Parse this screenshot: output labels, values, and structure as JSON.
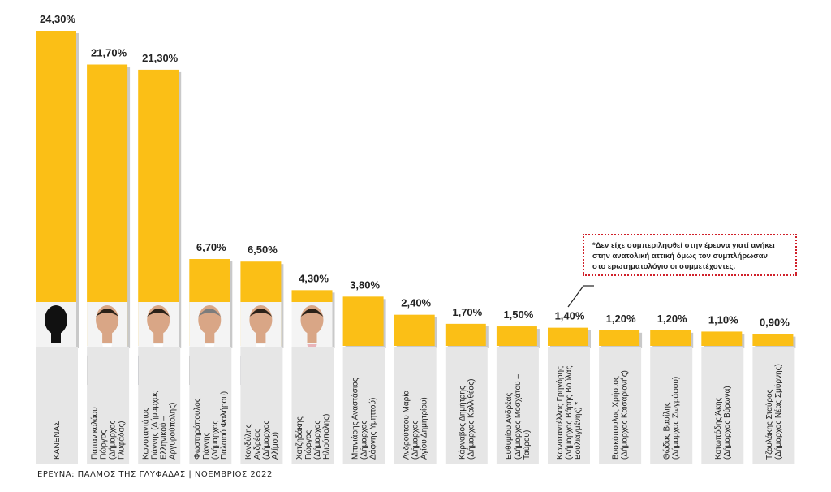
{
  "chart_data": {
    "type": "bar",
    "categories": [
      [
        "ΚΑΝΕΝΑΣ"
      ],
      [
        "Παπανικολάου",
        "Γιώργος",
        "(Δήμαρχος",
        "Γλυφάδας)"
      ],
      [
        "Κωνσταντάτος",
        "Γιάννης (Δήμαρχος",
        "Ελληνικού –",
        "Αργυρούπολης)"
      ],
      [
        "Φωστηρόπουλος",
        "Γιάννης",
        "(Δήμαρχος",
        "Παλαιού Φαλήρου)"
      ],
      [
        "Κονδύλης",
        "Ανδρέας",
        "(Δήμαρχος",
        "Αλίμου)"
      ],
      [
        "Χατζηδάκης",
        "Γιώργος",
        "(Δήμαρχος",
        "Ηλιούπολης)"
      ],
      [
        "Μπινιάρης Αναστάσιος",
        "(Δήμαρχος",
        "Δάφνης Υμηττού)"
      ],
      [
        "Ανδρούτσου Μαρία",
        "(Δήμαρχος",
        "Αγίου Δημητρίου)"
      ],
      [
        "Κάρναβος Δημήτρης",
        "(Δήμαρχος Καλλιθέας)"
      ],
      [
        "Ευθυμίου Ανδρέας",
        "(Δήμαρχος Μοσχάτου –",
        "Ταύρου)"
      ],
      [
        "Κωνσταντέλλος Γρηγόρης",
        "(Δήμαρχος Βάρης Βούλας",
        "Βουλιαγμένης) *"
      ],
      [
        "Βοσκόπουλος Χρήστος",
        "(Δήμαρχος Καισαριανής)"
      ],
      [
        "Θώδας Βασίλης",
        "(Δήμαρχος Ζωγράφου)"
      ],
      [
        "Κατωπόδης Άκης",
        "(Δήμαρχος Βύρωνα)"
      ],
      [
        "Τζουλάκης Σταύρος",
        "(Δήμαρχος Νέας Σμύρνης)"
      ]
    ],
    "values": [
      24.3,
      21.7,
      21.3,
      6.7,
      6.5,
      4.3,
      3.8,
      2.4,
      1.7,
      1.5,
      1.4,
      1.2,
      1.2,
      1.1,
      0.9
    ],
    "value_labels": [
      "24,30%",
      "21,70%",
      "21,30%",
      "6,70%",
      "6,50%",
      "4,30%",
      "3,80%",
      "2,40%",
      "1,70%",
      "1,50%",
      "1,40%",
      "1,20%",
      "1,20%",
      "1,10%",
      "0,90%"
    ],
    "photos": [
      true,
      true,
      true,
      true,
      true,
      true,
      false,
      false,
      false,
      false,
      false,
      false,
      false,
      false,
      false
    ],
    "title": "",
    "xlabel": "",
    "ylabel": "",
    "ylim": [
      0,
      24.3
    ],
    "grid": false,
    "legend": "none",
    "colors": {
      "bar": "#fbbf16",
      "bar_shadow": "#c9c9c9",
      "label_panel": "#e6e6e6",
      "photo_bg": "#f4f4f4",
      "note_border": "#d0202a"
    }
  },
  "note": {
    "lines": [
      "*Δεν είχε συμπεριληφθεί στην έρευνα γιατί ανήκει",
      "στην ανατολική αττική όμως τον συμπλήρωσαν",
      "στο ερωτηματολόγιο οι συμμετέχοντες."
    ]
  },
  "source": "ΕΡΕΥΝΑ: ΠΑΛΜΟΣ ΤΗΣ ΓΛΥΦΑΔΑΣ | ΝΟΕΜΒΡΙΟΣ 2022"
}
